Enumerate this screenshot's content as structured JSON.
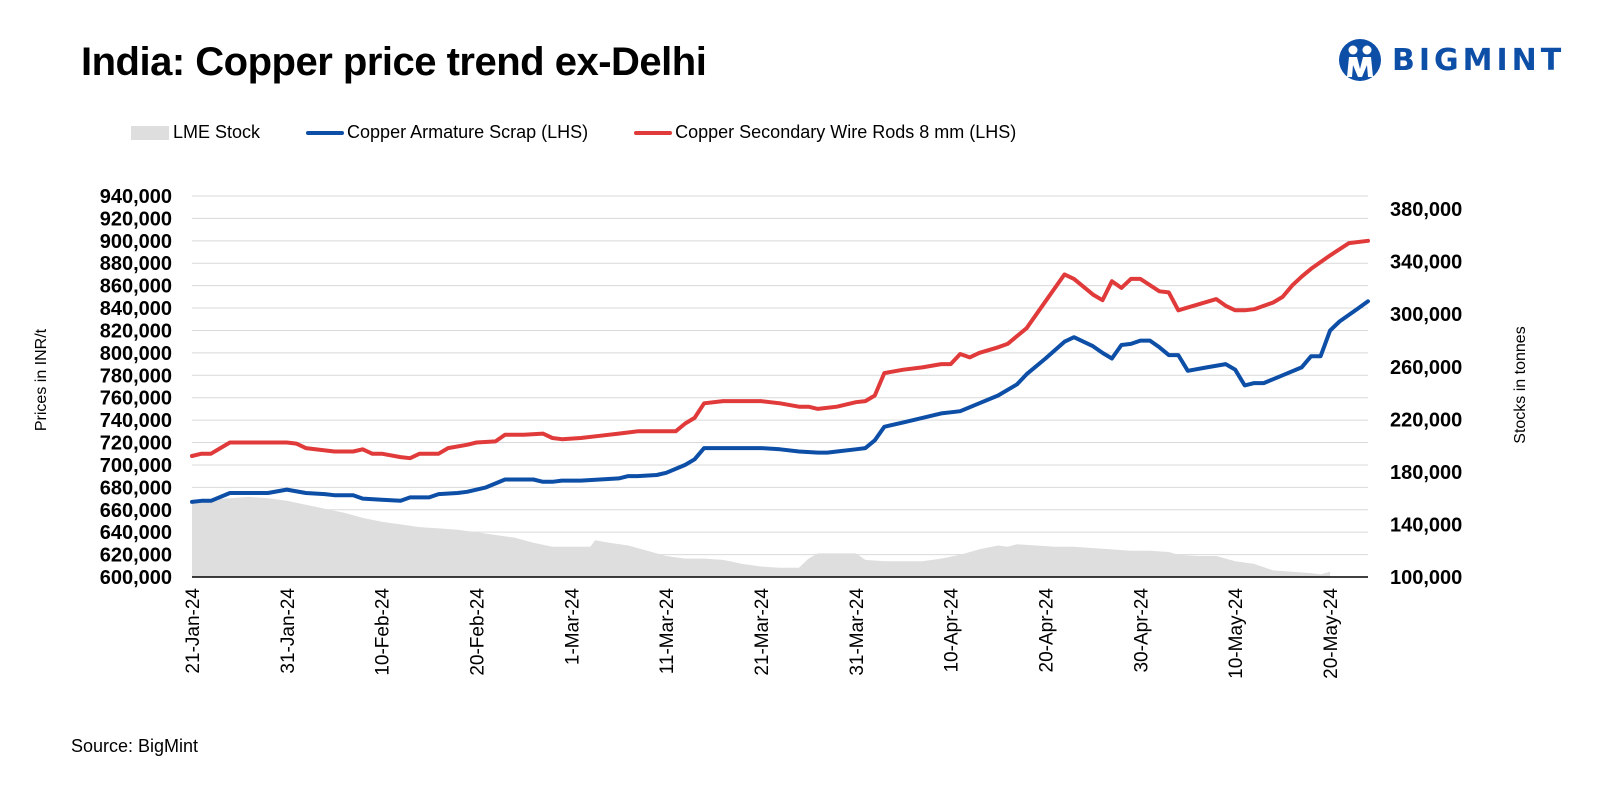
{
  "chart_data": {
    "type": "line",
    "title": "India: Copper price trend ex-Delhi",
    "source": "Source: BigMint",
    "ylabel_left": "Prices in INR/t",
    "ylabel_right": "Stocks in tonnes",
    "ylim_left": [
      600000,
      940000
    ],
    "ylim_right": [
      100000,
      390000
    ],
    "yticks_left": [
      "940,000",
      "920,000",
      "900,000",
      "880,000",
      "860,000",
      "840,000",
      "820,000",
      "800,000",
      "780,000",
      "760,000",
      "740,000",
      "720,000",
      "700,000",
      "680,000",
      "660,000",
      "640,000",
      "620,000",
      "600,000"
    ],
    "yticks_right": [
      "380,000",
      "340,000",
      "300,000",
      "260,000",
      "220,000",
      "180,000",
      "140,000",
      "100,000"
    ],
    "xticks": [
      {
        "label": "21-Jan-24",
        "day": 0
      },
      {
        "label": "31-Jan-24",
        "day": 10
      },
      {
        "label": "10-Feb-24",
        "day": 20
      },
      {
        "label": "20-Feb-24",
        "day": 30
      },
      {
        "label": "1-Mar-24",
        "day": 40
      },
      {
        "label": "11-Mar-24",
        "day": 50
      },
      {
        "label": "21-Mar-24",
        "day": 60
      },
      {
        "label": "31-Mar-24",
        "day": 70
      },
      {
        "label": "10-Apr-24",
        "day": 80
      },
      {
        "label": "20-Apr-24",
        "day": 90
      },
      {
        "label": "30-Apr-24",
        "day": 100
      },
      {
        "label": "10-May-24",
        "day": 110
      },
      {
        "label": "20-May-24",
        "day": 120
      }
    ],
    "x_domain": [
      0,
      120
    ],
    "x_unit": "days since 21-Jan-24",
    "series": [
      {
        "name": "LME Stock",
        "axis": "right",
        "style": "area",
        "color": "#dedede",
        "points": [
          [
            0,
            157000
          ],
          [
            2,
            159000
          ],
          [
            4,
            160000
          ],
          [
            6,
            161000
          ],
          [
            8,
            160000
          ],
          [
            10,
            158000
          ],
          [
            12,
            155000
          ],
          [
            14,
            152000
          ],
          [
            16,
            149000
          ],
          [
            18,
            145000
          ],
          [
            20,
            142000
          ],
          [
            22,
            140000
          ],
          [
            24,
            138000
          ],
          [
            26,
            137000
          ],
          [
            28,
            136000
          ],
          [
            30,
            134000
          ],
          [
            32,
            132000
          ],
          [
            34,
            130000
          ],
          [
            36,
            126000
          ],
          [
            38,
            123000
          ],
          [
            40,
            123000
          ],
          [
            42,
            123000
          ],
          [
            42.5,
            128000
          ],
          [
            44,
            126000
          ],
          [
            46,
            124000
          ],
          [
            48,
            120000
          ],
          [
            50,
            116000
          ],
          [
            52,
            114000
          ],
          [
            54,
            114000
          ],
          [
            56,
            113000
          ],
          [
            58,
            110000
          ],
          [
            60,
            108000
          ],
          [
            62,
            107000
          ],
          [
            64,
            107000
          ],
          [
            65,
            114000
          ],
          [
            66,
            118000
          ],
          [
            68,
            118000
          ],
          [
            70,
            118000
          ],
          [
            71,
            113000
          ],
          [
            73,
            112000
          ],
          [
            75,
            112000
          ],
          [
            77,
            112000
          ],
          [
            79,
            114000
          ],
          [
            81,
            117000
          ],
          [
            83,
            121000
          ],
          [
            85,
            124000
          ],
          [
            86,
            123000
          ],
          [
            87,
            125000
          ],
          [
            89,
            124000
          ],
          [
            91,
            123000
          ],
          [
            93,
            123000
          ],
          [
            95,
            122000
          ],
          [
            97,
            121000
          ],
          [
            99,
            120000
          ],
          [
            101,
            120000
          ],
          [
            103,
            119000
          ],
          [
            104,
            117000
          ],
          [
            106,
            116000
          ],
          [
            108,
            116000
          ],
          [
            110,
            112000
          ],
          [
            112,
            110000
          ],
          [
            114,
            105000
          ],
          [
            116,
            104000
          ],
          [
            118,
            103000
          ],
          [
            119,
            102000
          ],
          [
            120,
            104000
          ]
        ]
      },
      {
        "name": "Copper Armature Scrap (LHS)",
        "axis": "left",
        "style": "line",
        "color": "#0d4ea6",
        "points": [
          [
            0,
            667000
          ],
          [
            1,
            668000
          ],
          [
            2,
            668000
          ],
          [
            4,
            675000
          ],
          [
            6,
            675000
          ],
          [
            8,
            675000
          ],
          [
            10,
            678000
          ],
          [
            12,
            675000
          ],
          [
            14,
            674000
          ],
          [
            15,
            673000
          ],
          [
            17,
            673000
          ],
          [
            18,
            670000
          ],
          [
            20,
            669000
          ],
          [
            22,
            668000
          ],
          [
            23,
            671000
          ],
          [
            25,
            671000
          ],
          [
            26,
            674000
          ],
          [
            28,
            675000
          ],
          [
            29,
            676000
          ],
          [
            31,
            680000
          ],
          [
            33,
            687000
          ],
          [
            35,
            687000
          ],
          [
            36,
            687000
          ],
          [
            37,
            685000
          ],
          [
            38,
            685000
          ],
          [
            39,
            686000
          ],
          [
            41,
            686000
          ],
          [
            43,
            687000
          ],
          [
            45,
            688000
          ],
          [
            46,
            690000
          ],
          [
            47,
            690000
          ],
          [
            49,
            691000
          ],
          [
            50,
            693000
          ],
          [
            52,
            700000
          ],
          [
            53,
            705000
          ],
          [
            54,
            715000
          ],
          [
            56,
            715000
          ],
          [
            58,
            715000
          ],
          [
            60,
            715000
          ],
          [
            62,
            714000
          ],
          [
            64,
            712000
          ],
          [
            66,
            711000
          ],
          [
            67,
            711000
          ],
          [
            68,
            712000
          ],
          [
            70,
            714000
          ],
          [
            71,
            715000
          ],
          [
            72,
            722000
          ],
          [
            73,
            734000
          ],
          [
            75,
            738000
          ],
          [
            77,
            742000
          ],
          [
            79,
            746000
          ],
          [
            80,
            747000
          ],
          [
            81,
            748000
          ],
          [
            83,
            755000
          ],
          [
            85,
            762000
          ],
          [
            87,
            772000
          ],
          [
            88,
            781000
          ],
          [
            90,
            795000
          ],
          [
            92,
            810000
          ],
          [
            93,
            814000
          ],
          [
            95,
            806000
          ],
          [
            96,
            800000
          ],
          [
            97,
            795000
          ],
          [
            98,
            807000
          ],
          [
            99,
            808000
          ],
          [
            100,
            811000
          ],
          [
            101,
            811000
          ],
          [
            102,
            805000
          ],
          [
            103,
            798000
          ],
          [
            104,
            798000
          ],
          [
            105,
            784000
          ],
          [
            107,
            787000
          ],
          [
            109,
            790000
          ],
          [
            110,
            785000
          ],
          [
            111,
            771000
          ],
          [
            112,
            773000
          ],
          [
            113,
            773000
          ],
          [
            115,
            780000
          ],
          [
            117,
            787000
          ],
          [
            118,
            797000
          ],
          [
            119,
            797000
          ],
          [
            120,
            820000
          ],
          [
            121,
            828000
          ],
          [
            123,
            840000
          ],
          [
            124,
            846000
          ]
        ]
      },
      {
        "name": "Copper Secondary Wire Rods 8 mm (LHS)",
        "axis": "left",
        "style": "line",
        "color": "#e03a3a",
        "points": [
          [
            0,
            708000
          ],
          [
            1,
            710000
          ],
          [
            2,
            710000
          ],
          [
            4,
            720000
          ],
          [
            6,
            720000
          ],
          [
            8,
            720000
          ],
          [
            10,
            720000
          ],
          [
            11,
            719000
          ],
          [
            12,
            715000
          ],
          [
            14,
            713000
          ],
          [
            15,
            712000
          ],
          [
            17,
            712000
          ],
          [
            18,
            714000
          ],
          [
            19,
            710000
          ],
          [
            20,
            710000
          ],
          [
            22,
            707000
          ],
          [
            23,
            706000
          ],
          [
            24,
            710000
          ],
          [
            26,
            710000
          ],
          [
            27,
            715000
          ],
          [
            29,
            718000
          ],
          [
            30,
            720000
          ],
          [
            32,
            721000
          ],
          [
            33,
            727000
          ],
          [
            35,
            727000
          ],
          [
            37,
            728000
          ],
          [
            38,
            724000
          ],
          [
            39,
            723000
          ],
          [
            41,
            724000
          ],
          [
            43,
            726000
          ],
          [
            45,
            728000
          ],
          [
            47,
            730000
          ],
          [
            49,
            730000
          ],
          [
            51,
            730000
          ],
          [
            52,
            737000
          ],
          [
            53,
            742000
          ],
          [
            54,
            755000
          ],
          [
            56,
            757000
          ],
          [
            58,
            757000
          ],
          [
            60,
            757000
          ],
          [
            62,
            755000
          ],
          [
            64,
            752000
          ],
          [
            65,
            752000
          ],
          [
            66,
            750000
          ],
          [
            68,
            752000
          ],
          [
            70,
            756000
          ],
          [
            71,
            757000
          ],
          [
            72,
            762000
          ],
          [
            73,
            782000
          ],
          [
            75,
            785000
          ],
          [
            77,
            787000
          ],
          [
            79,
            790000
          ],
          [
            80,
            790000
          ],
          [
            81,
            799000
          ],
          [
            82,
            796000
          ],
          [
            83,
            800000
          ],
          [
            85,
            805000
          ],
          [
            86,
            808000
          ],
          [
            88,
            822000
          ],
          [
            90,
            846000
          ],
          [
            92,
            870000
          ],
          [
            93,
            866000
          ],
          [
            95,
            852000
          ],
          [
            96,
            847000
          ],
          [
            97,
            864000
          ],
          [
            98,
            858000
          ],
          [
            99,
            866000
          ],
          [
            100,
            866000
          ],
          [
            102,
            855000
          ],
          [
            103,
            854000
          ],
          [
            104,
            838000
          ],
          [
            106,
            843000
          ],
          [
            108,
            848000
          ],
          [
            109,
            842000
          ],
          [
            110,
            838000
          ],
          [
            111,
            838000
          ],
          [
            112,
            839000
          ],
          [
            114,
            845000
          ],
          [
            115,
            850000
          ],
          [
            116,
            860000
          ],
          [
            117,
            868000
          ],
          [
            118,
            875000
          ],
          [
            120,
            887000
          ],
          [
            122,
            898000
          ],
          [
            124,
            900000
          ]
        ]
      }
    ]
  },
  "brand": {
    "name": "BIGMINT"
  }
}
